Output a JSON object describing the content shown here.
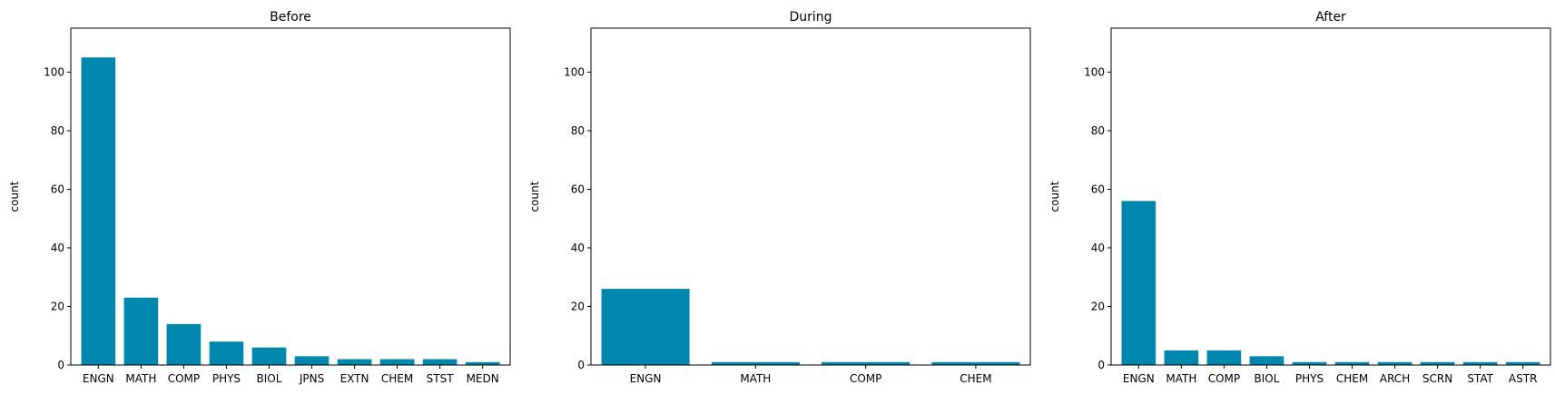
{
  "chart_data": [
    {
      "type": "bar",
      "title": "Before",
      "xlabel": "",
      "ylabel": "count",
      "ylim": [
        0,
        115
      ],
      "yticks": [
        0,
        20,
        40,
        60,
        80,
        100
      ],
      "categories": [
        "ENGN",
        "MATH",
        "COMP",
        "PHYS",
        "BIOL",
        "JPNS",
        "EXTN",
        "CHEM",
        "STST",
        "MEDN"
      ],
      "values": [
        105,
        23,
        14,
        8,
        6,
        3,
        2,
        2,
        2,
        1
      ],
      "color": "#0087ad",
      "grid": false
    },
    {
      "type": "bar",
      "title": "During",
      "xlabel": "",
      "ylabel": "count",
      "ylim": [
        0,
        115
      ],
      "yticks": [
        0,
        20,
        40,
        60,
        80,
        100
      ],
      "categories": [
        "ENGN",
        "MATH",
        "COMP",
        "CHEM"
      ],
      "values": [
        26,
        1,
        1,
        1
      ],
      "color": "#0087ad",
      "grid": false
    },
    {
      "type": "bar",
      "title": "After",
      "xlabel": "",
      "ylabel": "count",
      "ylim": [
        0,
        115
      ],
      "yticks": [
        0,
        20,
        40,
        60,
        80,
        100
      ],
      "categories": [
        "ENGN",
        "MATH",
        "COMP",
        "BIOL",
        "PHYS",
        "CHEM",
        "ARCH",
        "SCRN",
        "STAT",
        "ASTR"
      ],
      "values": [
        56,
        5,
        5,
        3,
        1,
        1,
        1,
        1,
        1,
        1
      ],
      "color": "#0087ad",
      "grid": false
    }
  ]
}
